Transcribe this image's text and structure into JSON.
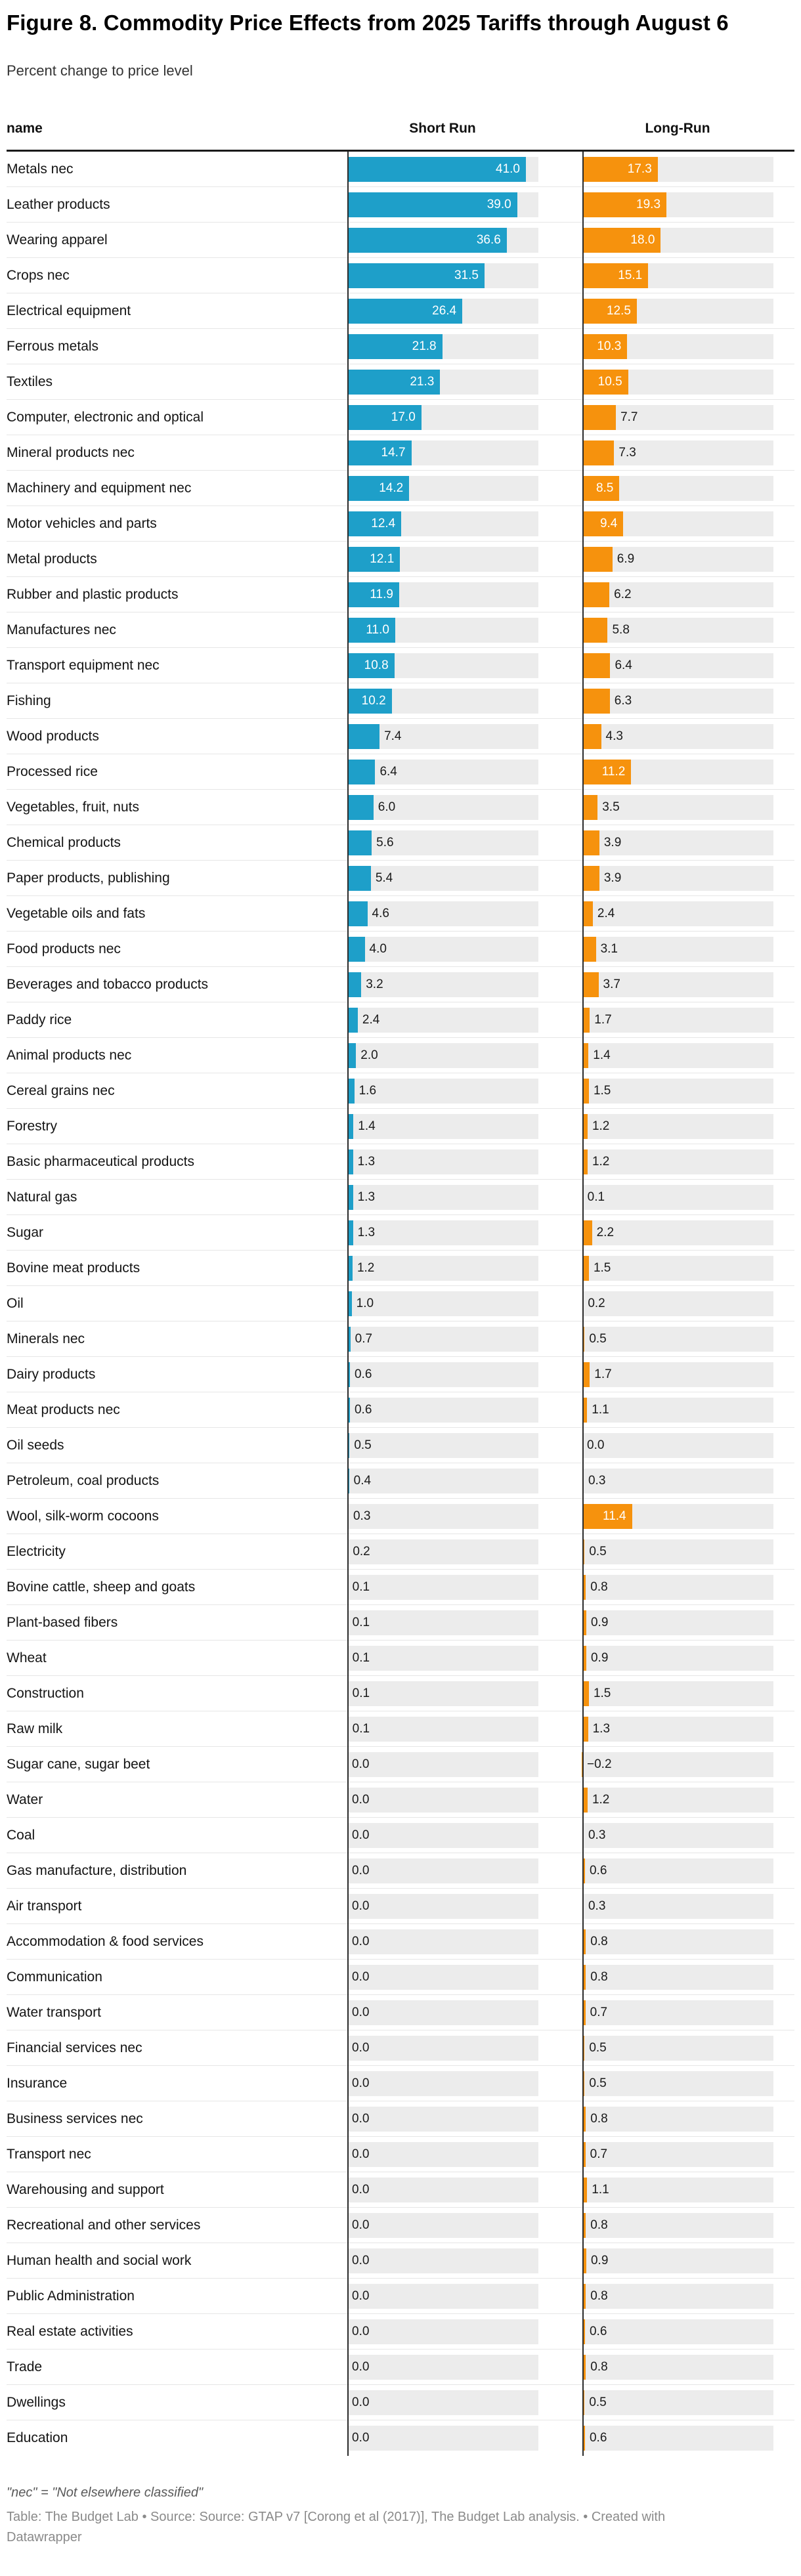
{
  "title": "Figure 8. Commodity Price Effects from 2025 Tariffs through August 6",
  "subtitle": "Percent change to price level",
  "table_header": {
    "name_col": "name",
    "short_run_col": "Short Run",
    "long_run_col": "Long-Run"
  },
  "footnote": "\"nec\" = \"Not elsewhere classified\"",
  "source_line1": "Table: The Budget Lab • Source: Source: GTAP v7 [Corong et al (2017)], The Budget Lab analysis. • Created with",
  "source_line2": "Datawrapper",
  "colors": {
    "short_run_bar": "#1E9FC9",
    "long_run_bar": "#F6920D",
    "track": "#ECECEC",
    "header_rule": "#1A1A1A",
    "axis_line": "#2B2B2B",
    "row_separator": "#E6E6E6"
  },
  "chart_data": {
    "type": "bar",
    "orientation": "horizontal",
    "title": "Figure 8. Commodity Price Effects from 2025 Tariffs through August 6",
    "subtitle": "Percent change to price level",
    "unit": "percent change to price level",
    "value_axis_min": 0,
    "value_axis_max": 41.0,
    "grid": "off",
    "legend_position": "column headers",
    "categories": [
      "Metals nec",
      "Leather products",
      "Wearing apparel",
      "Crops nec",
      "Electrical equipment",
      "Ferrous metals",
      "Textiles",
      "Computer, electronic and optical",
      "Mineral products nec",
      "Machinery and equipment nec",
      "Motor vehicles and parts",
      "Metal products",
      "Rubber and plastic products",
      "Manufactures nec",
      "Transport equipment nec",
      "Fishing",
      "Wood products",
      "Processed rice",
      "Vegetables, fruit, nuts",
      "Chemical products",
      "Paper products, publishing",
      "Vegetable oils and fats",
      "Food products nec",
      "Beverages and tobacco products",
      "Paddy rice",
      "Animal products nec",
      "Cereal grains nec",
      "Forestry",
      "Basic pharmaceutical products",
      "Natural gas",
      "Sugar",
      "Bovine meat products",
      "Oil",
      "Minerals nec",
      "Dairy products",
      "Meat products nec",
      "Oil seeds",
      "Petroleum, coal products",
      "Wool, silk-worm cocoons",
      "Electricity",
      "Bovine cattle, sheep and goats",
      "Plant-based fibers",
      "Wheat",
      "Construction",
      "Raw milk",
      "Sugar cane, sugar beet",
      "Water",
      "Coal",
      "Gas manufacture, distribution",
      "Air transport",
      "Accommodation & food services",
      "Communication",
      "Water transport",
      "Financial services nec",
      "Insurance",
      "Business services nec",
      "Transport nec",
      "Warehousing and support",
      "Recreational and other services",
      "Human health and social work",
      "Public Administration",
      "Real estate activities",
      "Trade",
      "Dwellings",
      "Education"
    ],
    "series": [
      {
        "name": "Short Run",
        "values": [
          41.0,
          39.0,
          36.6,
          31.5,
          26.4,
          21.8,
          21.3,
          17.0,
          14.7,
          14.2,
          12.4,
          12.1,
          11.9,
          11.0,
          10.8,
          10.2,
          7.4,
          6.4,
          6.0,
          5.6,
          5.4,
          4.6,
          4.0,
          3.2,
          2.4,
          2.0,
          1.6,
          1.4,
          1.3,
          1.3,
          1.3,
          1.2,
          1.0,
          0.7,
          0.6,
          0.6,
          0.5,
          0.4,
          0.3,
          0.2,
          0.1,
          0.1,
          0.1,
          0.1,
          0.1,
          0.0,
          0.0,
          0.0,
          0.0,
          0.0,
          0.0,
          0.0,
          0.0,
          0.0,
          0.0,
          0.0,
          0.0,
          0.0,
          0.0,
          0.0,
          0.0,
          0.0,
          0.0,
          0.0,
          0.0
        ]
      },
      {
        "name": "Long-Run",
        "values": [
          17.3,
          19.3,
          18.0,
          15.1,
          12.5,
          10.3,
          10.5,
          7.7,
          7.3,
          8.5,
          9.4,
          6.9,
          6.2,
          5.8,
          6.4,
          6.3,
          4.3,
          11.2,
          3.5,
          3.9,
          3.9,
          2.4,
          3.1,
          3.7,
          1.7,
          1.4,
          1.5,
          1.2,
          1.2,
          0.1,
          2.2,
          1.5,
          0.2,
          0.5,
          1.7,
          1.1,
          0.0,
          0.3,
          11.4,
          0.5,
          0.8,
          0.9,
          0.9,
          1.5,
          1.3,
          -0.2,
          1.2,
          0.3,
          0.6,
          0.3,
          0.8,
          0.8,
          0.7,
          0.5,
          0.5,
          0.8,
          0.7,
          1.1,
          0.8,
          0.9,
          0.8,
          0.6,
          0.8,
          0.5,
          0.6
        ]
      }
    ]
  }
}
